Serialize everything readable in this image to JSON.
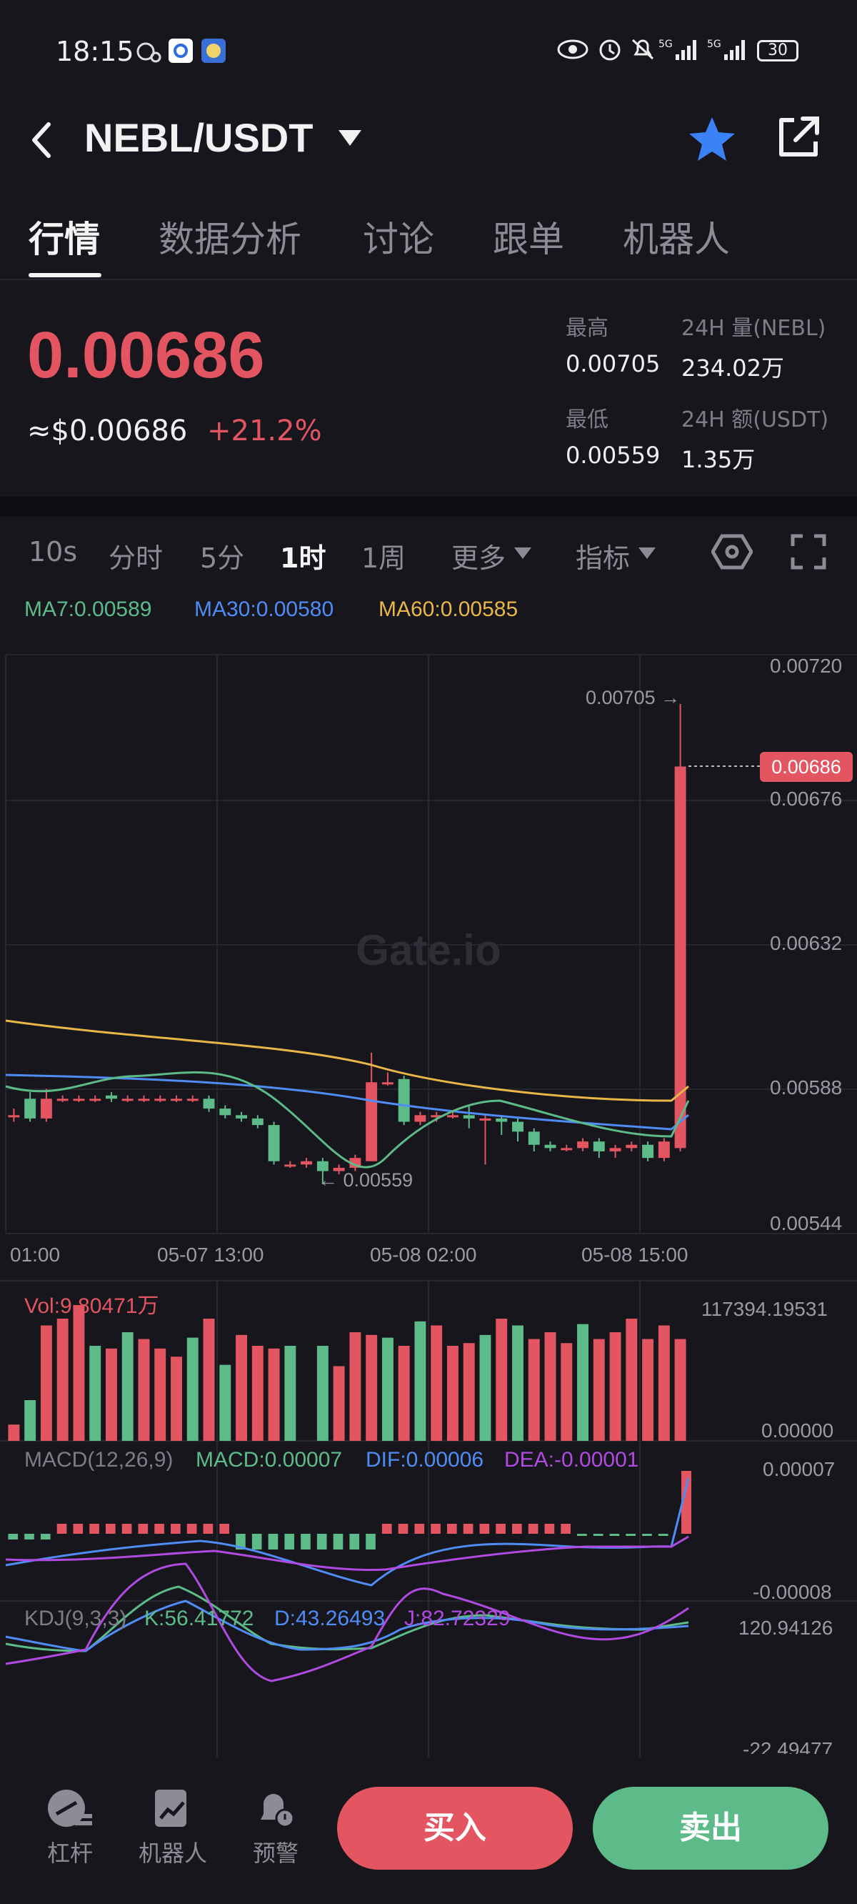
{
  "status_bar": {
    "time": "18:15",
    "battery": "30"
  },
  "header": {
    "pair": "NEBL/USDT"
  },
  "tabs": [
    "行情",
    "数据分析",
    "讨论",
    "跟单",
    "机器人"
  ],
  "ticker": {
    "price": "0.00686",
    "approx_usd": "≈$0.00686",
    "change": "+21.2%",
    "high_label": "最高",
    "high": "0.00705",
    "low_label": "最低",
    "low": "0.00559",
    "vol_label": "24H 量(NEBL)",
    "vol": "234.02万",
    "amt_label": "24H 额(USDT)",
    "amt": "1.35万"
  },
  "intervals": [
    "10s",
    "分时",
    "5分",
    "1时",
    "1周",
    "更多",
    "指标"
  ],
  "ma": {
    "ma7": "MA7:0.00589",
    "ma30": "MA30:0.00580",
    "ma60": "MA60:0.00585"
  },
  "chart": {
    "y_ticks": [
      "0.00720",
      "0.00676",
      "0.00632",
      "0.00588",
      "0.00544"
    ],
    "x_ticks": [
      "01:00",
      "05-07 13:00",
      "05-08 02:00",
      "05-08 15:00"
    ],
    "high_marker": "0.00705 →",
    "low_marker": "← 0.00559",
    "last_price": "0.00686",
    "watermark": "Gate.io"
  },
  "volume": {
    "label": "Vol:9.80471万",
    "max": "117394.19531",
    "min": "0.00000"
  },
  "macd": {
    "params": "MACD(12,26,9)",
    "macd": "MACD:0.00007",
    "dif": "DIF:0.00006",
    "dea": "DEA:-0.00001",
    "max": "0.00007",
    "min": "-0.00008"
  },
  "kdj": {
    "params": "KDJ(9,3,3)",
    "k": "K:56.41772",
    "d": "D:43.26493",
    "j": "J:82.72329",
    "max": "120.94126",
    "min": "-22.49477"
  },
  "bottom_nav": {
    "leverage": "杠杆",
    "robot": "机器人",
    "alert": "预警",
    "buy": "买入",
    "sell": "卖出"
  },
  "colors": {
    "up": "#5cbb88",
    "down": "#e35561",
    "ma7": "#5cbb88",
    "ma30": "#4f8cf5",
    "ma60": "#e9b648",
    "star": "#3b82f6"
  }
}
